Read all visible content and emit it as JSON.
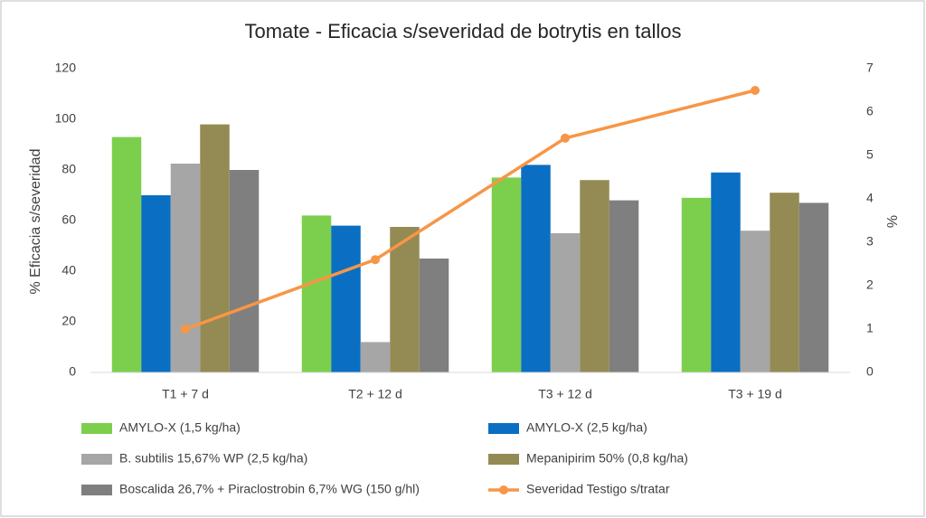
{
  "chart_data": {
    "type": "bar",
    "title": "Tomate - Eficacia s/severidad de botrytis en tallos",
    "y_label": "% Eficacia s/severidad",
    "y2_label": "%",
    "categories": [
      "T1 + 7 d",
      "T2 + 12 d",
      "T3 + 12 d",
      "T3 + 19 d"
    ],
    "series": [
      {
        "name": "AMYLO-X (1,5 kg/ha)",
        "color": "#7ccf4c",
        "values": [
          93,
          62,
          77,
          69
        ]
      },
      {
        "name": "AMYLO-X (2,5 kg/ha)",
        "color": "#0a6fc2",
        "values": [
          70,
          58,
          82,
          79
        ]
      },
      {
        "name": "B. subtilis 15,67% WP (2,5 kg/ha)",
        "color": "#a6a6a6",
        "values": [
          82.5,
          12,
          55,
          56
        ]
      },
      {
        "name": "Mepanipirim 50% (0,8 kg/ha)",
        "color": "#948a54",
        "values": [
          98,
          57.5,
          76,
          71
        ]
      },
      {
        "name": "Boscalida 26,7% + Piraclostrobin 6,7% WG (150 g/hl)",
        "color": "#7f7f7f",
        "values": [
          80,
          45,
          68,
          67
        ]
      },
      {
        "name": "Severidad Testigo s/tratar",
        "color": "#f79646",
        "type": "line",
        "axis": "y2",
        "values": [
          1.0,
          2.6,
          5.4,
          6.5
        ]
      }
    ],
    "ylim": [
      0,
      120
    ],
    "yticks": [
      0,
      20,
      40,
      60,
      80,
      100,
      120
    ],
    "y2lim": [
      0,
      7
    ],
    "y2ticks": [
      0,
      1,
      2,
      3,
      4,
      5,
      6,
      7
    ],
    "grid": false,
    "legend": "bottom"
  }
}
